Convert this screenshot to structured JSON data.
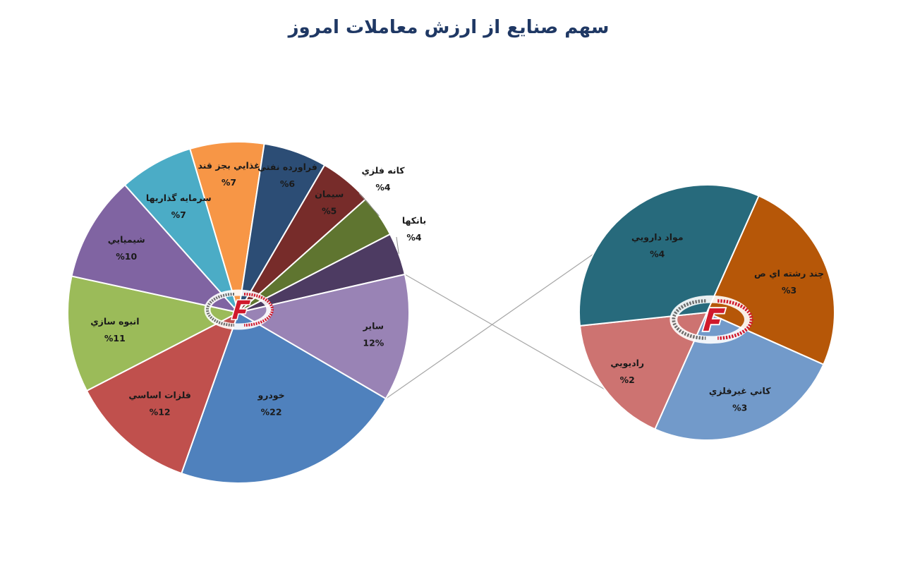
{
  "chart_data": [
    {
      "type": "pie",
      "title": "سهم صنایع از ارزش معاملات امروز",
      "slices": [
        {
          "name": "خودرو",
          "value": 22,
          "label": "%22",
          "color": "#4f81bd"
        },
        {
          "name": "فلزات اساسي",
          "value": 12,
          "label": "%12",
          "color": "#c0504d"
        },
        {
          "name": "انبوه سازي",
          "value": 11,
          "label": "%11",
          "color": "#9bbb59"
        },
        {
          "name": "شيميايي",
          "value": 10,
          "label": "%10",
          "color": "#8064a2"
        },
        {
          "name": "سرمايه گذاريها",
          "value": 7,
          "label": "%7",
          "color": "#4bacc6"
        },
        {
          "name": "غذايي بجز قند",
          "value": 7,
          "label": "%7",
          "color": "#f79646"
        },
        {
          "name": "فراورده نفتي",
          "value": 6,
          "label": "%6",
          "color": "#2c4d75"
        },
        {
          "name": "سيمان",
          "value": 5,
          "label": "%5",
          "color": "#772c2a"
        },
        {
          "name": "كانه فلزي",
          "value": 4,
          "label": "%4",
          "color": "#5f7530"
        },
        {
          "name": "بانكها",
          "value": 4,
          "label": "%4",
          "color": "#4d3b62"
        },
        {
          "name": "ساير",
          "value": 12,
          "label": "12%",
          "color": "#9983b5"
        }
      ]
    },
    {
      "type": "pie",
      "detail_of": "ساير",
      "slices": [
        {
          "name": "كاني غيرفلزي",
          "value": 3,
          "label": "%3",
          "color": "#729aca"
        },
        {
          "name": "راديويي",
          "value": 2,
          "label": "%2",
          "color": "#cd7371"
        },
        {
          "name": "مواد دارويي",
          "value": 4,
          "label": "%4",
          "color": "#276a7c"
        },
        {
          "name": "چند رشته اي ص",
          "value": 3,
          "label": "%3",
          "color": "#b65708"
        }
      ]
    }
  ]
}
